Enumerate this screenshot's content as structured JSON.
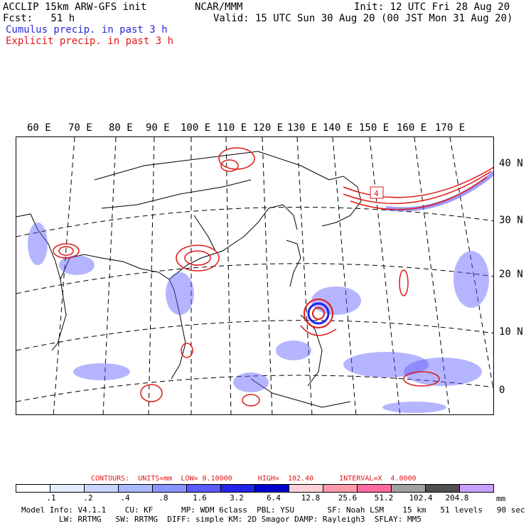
{
  "header": {
    "model": "ACCLIP 15km ARW-GFS init",
    "center": "NCAR/MMM",
    "init": "Init: 12 UTC Fri 28 Aug 20",
    "fcst": "Fcst:   51 h",
    "valid": "Valid: 15 UTC Sun 30 Aug 20 (00 JST Mon 31 Aug 20)",
    "cumulus": "Cumulus precip. in past 3 h",
    "explicit": "Explicit precip. in past 3 h"
  },
  "colors": {
    "cumulus": "#2a2ad0",
    "explicit": "#e01818",
    "coast": "#000000",
    "grid": "#000000"
  },
  "axes": {
    "longitude_labels": [
      "60 E",
      "70 E",
      "80 E",
      "90 E",
      "100 E",
      "110 E",
      "120 E",
      "130 E",
      "140 E",
      "150 E",
      "160 E",
      "170 E"
    ],
    "latitude_labels": [
      "40 N",
      "30 N",
      "20 N",
      "10 N",
      "0"
    ]
  },
  "map": {
    "marker_label": "4",
    "features": [
      "coastlines",
      "country-borders",
      "lat-lon-grid-dashed",
      "cumulus-precip-shading",
      "explicit-precip-contours",
      "typhoon-circulation"
    ]
  },
  "legend": {
    "contours": "CONTOURS:  UNITS=mm  LOW= 0.10000      HIGH=  102.40      INTERVAL=X  4.0000",
    "units": "mm",
    "scale_labels": [
      ".1",
      ".2",
      ".4",
      ".8",
      "1.6",
      "3.2",
      "6.4",
      "12.8",
      "25.6",
      "51.2",
      "102.4",
      "204.8"
    ],
    "scale_colors": [
      "#ffffff",
      "#e6ecff",
      "#c8d4ff",
      "#aab8ff",
      "#8a96ff",
      "#5a5aff",
      "#2323ee",
      "#0000cc",
      "#ffd0d8",
      "#ff9aaa",
      "#ff6aa0",
      "#a0a0a0",
      "#505050",
      "#c8a0ff"
    ]
  },
  "footer": {
    "line1": "Model Info: V4.1.1    CU: KF      MP: WDM 6class  PBL: YSU       SF: Noah LSM    15 km   51 levels   90 sec",
    "line2": "        LW: RRTMG   SW: RRTMG  DIFF: simple KM: 2D Smagor DAMP: Rayleigh3  SFLAY: MM5"
  }
}
